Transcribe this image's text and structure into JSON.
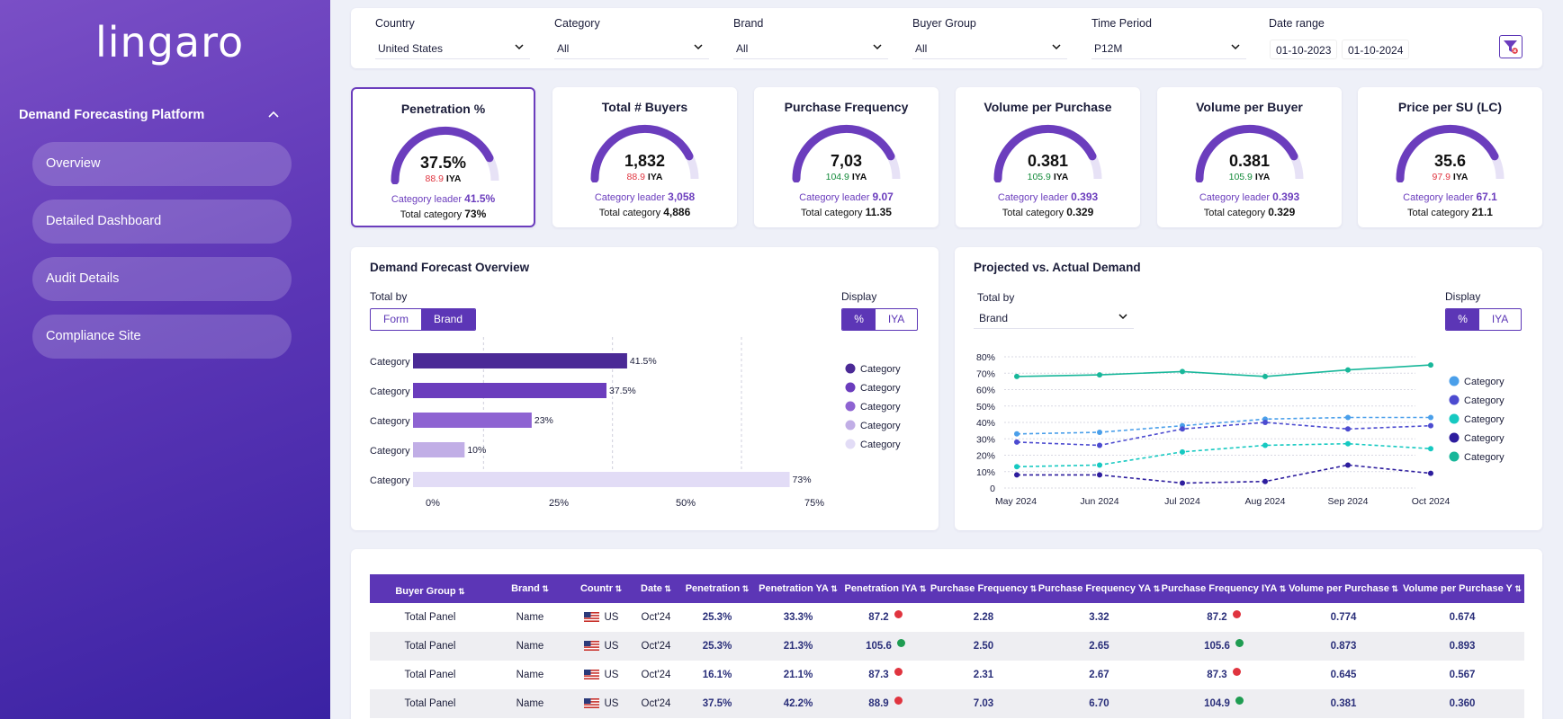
{
  "sidebar": {
    "logo": "lingaro",
    "heading": "Demand Forecasting Platform",
    "items": [
      {
        "label": "Overview"
      },
      {
        "label": "Detailed Dashboard"
      },
      {
        "label": "Audit Details"
      },
      {
        "label": "Compliance Site"
      }
    ]
  },
  "filters": {
    "country": {
      "label": "Country",
      "value": "United States"
    },
    "category": {
      "label": "Category",
      "value": "All"
    },
    "brand": {
      "label": "Brand",
      "value": "All"
    },
    "buyer_group": {
      "label": "Buyer Group",
      "value": "All"
    },
    "time_period": {
      "label": "Time Period",
      "value": "P12M"
    },
    "date_range": {
      "label": "Date range",
      "from": "01-10-2023",
      "to": "01-10-2024"
    }
  },
  "kpis": [
    {
      "title": "Penetration %",
      "value": "37.5%",
      "iya": "88.9",
      "iya_label": "IYA",
      "iya_status": "bad",
      "leader_label": "Category leader",
      "leader": "41.5%",
      "total_label": "Total category",
      "total": "73%",
      "gauge_fill": 0.85
    },
    {
      "title": "Total # Buyers",
      "value": "1,832",
      "iya": "88.9",
      "iya_label": "IYA",
      "iya_status": "bad",
      "leader_label": "Category leader",
      "leader": "3,058",
      "total_label": "Total category",
      "total": "4,886",
      "gauge_fill": 0.85
    },
    {
      "title": "Purchase Frequency",
      "value": "7,03",
      "iya": "104.9",
      "iya_label": "IYA",
      "iya_status": "good",
      "leader_label": "Category leader",
      "leader": "9.07",
      "total_label": "Total category",
      "total": "11.35",
      "gauge_fill": 0.85
    },
    {
      "title": "Volume per Purchase",
      "value": "0.381",
      "iya": "105.9",
      "iya_label": "IYA",
      "iya_status": "good",
      "leader_label": "Category leader",
      "leader": "0.393",
      "total_label": "Total category",
      "total": "0.329",
      "gauge_fill": 0.85
    },
    {
      "title": "Volume per Buyer",
      "value": "0.381",
      "iya": "105.9",
      "iya_label": "IYA",
      "iya_status": "good",
      "leader_label": "Category leader",
      "leader": "0.393",
      "total_label": "Total category",
      "total": "0.329",
      "gauge_fill": 0.85
    },
    {
      "title": "Price per SU (LC)",
      "value": "35.6",
      "iya": "97.9",
      "iya_label": "IYA",
      "iya_status": "bad",
      "leader_label": "Category leader",
      "leader": "67.1",
      "total_label": "Total category",
      "total": "21.1",
      "gauge_fill": 0.85
    }
  ],
  "demand_panel": {
    "title": "Demand Forecast Overview",
    "total_by_label": "Total by",
    "toggle": [
      "Form",
      "Brand"
    ],
    "toggle_selected": 1,
    "display_label": "Display",
    "display": [
      "%",
      "IYA"
    ],
    "display_selected": 0
  },
  "projected_panel": {
    "title": "Projected vs. Actual Demand",
    "total_by_label": "Total by",
    "total_by_value": "Brand",
    "display_label": "Display",
    "display": [
      "%",
      "IYA"
    ],
    "display_selected": 0
  },
  "chart_data": [
    {
      "type": "bar",
      "orientation": "horizontal",
      "categories": [
        "Category",
        "Category",
        "Category",
        "Category",
        "Category"
      ],
      "values": [
        41.5,
        37.5,
        23,
        10,
        73
      ],
      "value_labels": [
        "41.5%",
        "37.5%",
        "23%",
        "10%",
        "73%"
      ],
      "colors": [
        "#4b2a96",
        "#6b3dbd",
        "#8e63d2",
        "#c1aee6",
        "#e2dcf6"
      ],
      "xlim": [
        0,
        75
      ],
      "xticks": [
        "0%",
        "25%",
        "50%",
        "75%"
      ],
      "legend": [
        "Category",
        "Category",
        "Category",
        "Category",
        "Category"
      ],
      "legend_placement": "right",
      "grid": "vertical dashed"
    },
    {
      "type": "line",
      "x": [
        "May 2024",
        "Jun 2024",
        "Jul 2024",
        "Aug 2024",
        "Sep 2024",
        "Oct 2024"
      ],
      "ylim": [
        0,
        80
      ],
      "yticks": [
        "0",
        "10%",
        "20%",
        "30%",
        "40%",
        "50%",
        "60%",
        "70%",
        "80%"
      ],
      "series": [
        {
          "name": "Category",
          "color": "#18b79a",
          "style": "solid",
          "values": [
            68,
            69,
            71,
            68,
            72,
            75
          ]
        },
        {
          "name": "Category",
          "color": "#4a9fea",
          "style": "dashed",
          "values": [
            33,
            34,
            38,
            42,
            43,
            43
          ]
        },
        {
          "name": "Category",
          "color": "#4c4bd0",
          "style": "dashed",
          "values": [
            28,
            26,
            36,
            40,
            36,
            38
          ]
        },
        {
          "name": "Category",
          "color": "#16c9c1",
          "style": "dashed",
          "values": [
            13,
            14,
            22,
            26,
            27,
            24
          ]
        },
        {
          "name": "Category",
          "color": "#2d1d9e",
          "style": "dashed",
          "values": [
            8,
            8,
            3,
            4,
            14,
            9
          ]
        }
      ],
      "legend": [
        {
          "name": "Category",
          "color": "#4a9fea"
        },
        {
          "name": "Category",
          "color": "#4c4bd0"
        },
        {
          "name": "Category",
          "color": "#16c9c1"
        },
        {
          "name": "Category",
          "color": "#2d1d9e"
        },
        {
          "name": "Category",
          "color": "#18b79a"
        }
      ],
      "legend_placement": "right",
      "grid": "horizontal dotted"
    }
  ],
  "table": {
    "headers": [
      "Buyer Group",
      "Brand",
      "Country",
      "Date",
      "Penetration",
      "Penetration YA",
      "Penetration IYA",
      "Purchase Frequency",
      "Purchase Frequency YA",
      "Purchase Frequency IYA",
      "Volume per Purchase",
      "Volume per Purchase YA"
    ],
    "header_display": [
      "Buyer Group",
      "Brand",
      "Countr",
      "Date",
      "Penetration",
      "Penetration YA",
      "Penetration IYA",
      "Purchase Frequency",
      "Purchase Frequency YA",
      "Purchase Frequency IYA",
      "Volume per Purchase",
      "Volume per Purchase Y"
    ],
    "rows": [
      {
        "buyer_group": "Total Panel",
        "brand": "Name",
        "country": "US",
        "date": "Oct'24",
        "pen": "25.3%",
        "pen_ya": "33.3%",
        "pen_iya": "87.2",
        "pen_status": "bad",
        "pf": "2.28",
        "pf_ya": "3.32",
        "pf_iya": "87.2",
        "pf_status": "bad",
        "vpp": "0.774",
        "vpp_ya": "0.674"
      },
      {
        "buyer_group": "Total Panel",
        "brand": "Name",
        "country": "US",
        "date": "Oct'24",
        "pen": "25.3%",
        "pen_ya": "21.3%",
        "pen_iya": "105.6",
        "pen_status": "good",
        "pf": "2.50",
        "pf_ya": "2.65",
        "pf_iya": "105.6",
        "pf_status": "good",
        "vpp": "0.873",
        "vpp_ya": "0.893"
      },
      {
        "buyer_group": "Total Panel",
        "brand": "Name",
        "country": "US",
        "date": "Oct'24",
        "pen": "16.1%",
        "pen_ya": "21.1%",
        "pen_iya": "87.3",
        "pen_status": "bad",
        "pf": "2.31",
        "pf_ya": "2.67",
        "pf_iya": "87.3",
        "pf_status": "bad",
        "vpp": "0.645",
        "vpp_ya": "0.567"
      },
      {
        "buyer_group": "Total Panel",
        "brand": "Name",
        "country": "US",
        "date": "Oct'24",
        "pen": "37.5%",
        "pen_ya": "42.2%",
        "pen_iya": "88.9",
        "pen_status": "bad",
        "pf": "7.03",
        "pf_ya": "6.70",
        "pf_iya": "104.9",
        "pf_status": "good",
        "vpp": "0.381",
        "vpp_ya": "0.360"
      }
    ]
  }
}
